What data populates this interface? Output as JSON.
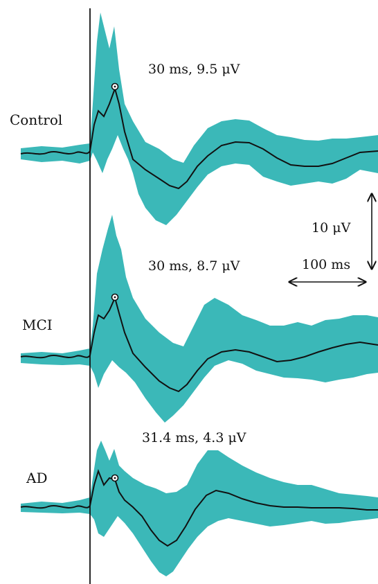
{
  "chart_data": {
    "type": "line",
    "colors": {
      "band": "#3bb8b8",
      "mean": "#111111"
    },
    "scale_bar": {
      "amplitude_label": "10 μV",
      "time_label": "100 ms"
    },
    "panels": [
      {
        "group": "Control",
        "peak_label": "30 ms, 9.5 μV",
        "peak": {
          "latency_ms": 30,
          "amplitude_uv": 9.5
        }
      },
      {
        "group": "MCI",
        "peak_label": "30 ms, 8.7 μV",
        "peak": {
          "latency_ms": 30,
          "amplitude_uv": 8.7
        }
      },
      {
        "group": "AD",
        "peak_label": "31.4 ms, 4.3 μV",
        "peak": {
          "latency_ms": 31.4,
          "amplitude_uv": 4.3
        }
      }
    ]
  }
}
